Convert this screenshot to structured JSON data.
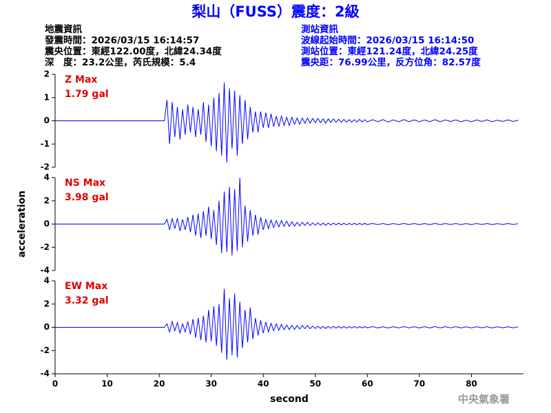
{
  "header": {
    "title": "梨山（FUSS）震度：2級",
    "event_info": [
      "地震資訊",
      "發震時間：2026/03/15 16:14:57",
      "震央位置：東經122.00度，北緯24.34度",
      "深　度：23.2公里，芮氏規模：5.4"
    ],
    "station_info": [
      "測站資訊",
      "波線起始時間：2026/03/15 16:14:50",
      "測站位置：東經121.24度，北緯24.25度",
      "震央距：76.99公里，反方位角：82.57度"
    ]
  },
  "chart_data": [
    {
      "type": "line",
      "annotations": [
        "Z Max",
        "1.79 gal"
      ],
      "xlim": [
        0,
        90
      ],
      "ylim": [
        -2,
        2
      ],
      "yticks": [
        -2,
        -1,
        0,
        1,
        2
      ],
      "x": [
        0,
        21,
        21.5,
        22,
        22.5,
        23,
        23.5,
        24,
        24.5,
        25,
        25.5,
        26,
        26.5,
        27,
        27.5,
        28,
        28.5,
        29,
        29.5,
        30,
        30.5,
        31,
        31.5,
        32,
        32.5,
        33,
        33.5,
        34,
        34.5,
        35,
        35.5,
        36,
        36.5,
        37,
        37.5,
        38,
        38.5,
        39,
        39.5,
        40,
        40.5,
        41,
        41.5,
        42,
        42.5,
        43,
        43.5,
        44,
        44.5,
        45,
        45.5,
        46,
        46.5,
        47,
        47.5,
        48,
        48.5,
        49,
        49.5,
        50,
        50.5,
        51,
        51.5,
        52,
        52.5,
        53,
        53.5,
        54,
        54.5,
        55,
        55.5,
        56,
        56.5,
        57,
        57.5,
        58,
        58.5,
        59,
        59.5,
        60,
        61,
        62,
        63,
        64,
        65,
        66,
        67,
        68,
        69,
        70,
        71,
        72,
        73,
        74,
        75,
        76,
        77,
        78,
        79,
        80,
        81,
        82,
        83,
        84,
        85,
        86,
        87,
        88,
        89
      ],
      "series": [
        {
          "color": "#0000ff",
          "values": [
            0,
            0,
            0.9,
            -1.0,
            0.8,
            -0.7,
            0.6,
            -0.8,
            0.5,
            -0.6,
            0.7,
            -0.5,
            0.6,
            -0.7,
            0.5,
            -0.6,
            0.8,
            -0.9,
            0.7,
            -1.1,
            1.0,
            -1.3,
            1.2,
            -1.5,
            1.65,
            -1.79,
            1.4,
            -1.2,
            1.3,
            -1.5,
            1.1,
            -1.0,
            0.9,
            -0.8,
            0.6,
            -0.5,
            0.4,
            -0.5,
            0.4,
            -0.3,
            0.35,
            -0.3,
            0.3,
            -0.25,
            0.2,
            -0.25,
            0.2,
            -0.2,
            0.15,
            -0.2,
            0.15,
            -0.15,
            0.12,
            -0.15,
            0.12,
            -0.1,
            0.12,
            -0.1,
            0.1,
            -0.08,
            0.1,
            -0.08,
            0.08,
            -0.1,
            0.08,
            -0.07,
            0.08,
            -0.06,
            0.07,
            -0.06,
            0.06,
            -0.06,
            0.05,
            -0.06,
            0.05,
            -0.05,
            0.06,
            -0.05,
            0.05,
            -0.05,
            0.05,
            -0.04,
            0.05,
            -0.05,
            0.04,
            -0.04,
            0.05,
            -0.04,
            0.04,
            -0.04,
            0.04,
            -0.04,
            0.05,
            -0.04,
            0.04,
            -0.03,
            0.04,
            -0.04,
            0.03,
            -0.04,
            0.04,
            -0.03,
            0.04,
            -0.04,
            0.03,
            -0.03,
            0.04,
            -0.03,
            0.03
          ]
        }
      ]
    },
    {
      "type": "line",
      "annotations": [
        "NS Max",
        "3.98 gal"
      ],
      "y_label": "acceleration",
      "xlim": [
        0,
        90
      ],
      "ylim": [
        -4,
        4
      ],
      "yticks": [
        -4,
        -2,
        0,
        2,
        4
      ],
      "x": [
        0,
        21,
        21.5,
        22,
        22.5,
        23,
        23.5,
        24,
        24.5,
        25,
        25.5,
        26,
        26.5,
        27,
        27.5,
        28,
        28.5,
        29,
        29.5,
        30,
        30.5,
        31,
        31.5,
        32,
        32.5,
        33,
        33.5,
        34,
        34.5,
        35,
        35.5,
        36,
        36.5,
        37,
        37.5,
        38,
        38.5,
        39,
        39.5,
        40,
        40.5,
        41,
        41.5,
        42,
        42.5,
        43,
        43.5,
        44,
        44.5,
        45,
        45.5,
        46,
        46.5,
        47,
        47.5,
        48,
        48.5,
        49,
        49.5,
        50,
        50.5,
        51,
        51.5,
        52,
        52.5,
        53,
        53.5,
        54,
        54.5,
        55,
        55.5,
        56,
        56.5,
        57,
        57.5,
        58,
        58.5,
        59,
        59.5,
        60,
        61,
        62,
        63,
        64,
        65,
        66,
        67,
        68,
        69,
        70,
        71,
        72,
        73,
        74,
        75,
        76,
        77,
        78,
        79,
        80,
        81,
        82,
        83,
        84,
        85,
        86,
        87,
        88,
        89
      ],
      "series": [
        {
          "color": "#0000ff",
          "values": [
            0,
            0,
            0.4,
            -0.5,
            0.5,
            -0.4,
            0.5,
            -0.6,
            0.4,
            -0.5,
            0.6,
            -0.7,
            0.8,
            -1.0,
            0.9,
            -1.2,
            1.1,
            -1.0,
            1.5,
            -1.3,
            1.2,
            -1.8,
            2.0,
            -2.5,
            2.8,
            -2.4,
            3.2,
            -2.7,
            3.0,
            -2.3,
            3.98,
            -2.0,
            1.6,
            -1.5,
            1.2,
            -1.0,
            0.8,
            -0.9,
            0.6,
            -0.5,
            0.4,
            -0.4,
            0.35,
            -0.3,
            0.3,
            -0.25,
            0.3,
            -0.2,
            0.25,
            -0.2,
            0.2,
            -0.18,
            0.15,
            -0.15,
            0.15,
            -0.12,
            0.15,
            -0.12,
            0.1,
            -0.1,
            0.1,
            -0.1,
            0.08,
            -0.1,
            0.08,
            -0.08,
            0.08,
            -0.07,
            0.08,
            -0.07,
            0.07,
            -0.07,
            0.06,
            -0.06,
            0.07,
            -0.06,
            0.06,
            -0.05,
            0.06,
            -0.05,
            0.06,
            -0.05,
            0.05,
            -0.06,
            0.05,
            -0.05,
            0.06,
            -0.05,
            0.05,
            -0.05,
            0.05,
            -0.05,
            0.06,
            -0.05,
            0.05,
            -0.04,
            0.05,
            -0.05,
            0.04,
            -0.05,
            0.05,
            -0.04,
            0.05,
            -0.05,
            0.04,
            -0.04,
            0.05,
            -0.04,
            0.04
          ]
        }
      ]
    },
    {
      "type": "line",
      "annotations": [
        "EW Max",
        "3.32 gal"
      ],
      "x_label": "second",
      "xlim": [
        0,
        90
      ],
      "xticks": [
        0,
        10,
        20,
        30,
        40,
        50,
        60,
        70,
        80
      ],
      "ylim": [
        -4,
        4
      ],
      "yticks": [
        -4,
        -2,
        0,
        2,
        4
      ],
      "x": [
        0,
        21,
        21.5,
        22,
        22.5,
        23,
        23.5,
        24,
        24.5,
        25,
        25.5,
        26,
        26.5,
        27,
        27.5,
        28,
        28.5,
        29,
        29.5,
        30,
        30.5,
        31,
        31.5,
        32,
        32.5,
        33,
        33.5,
        34,
        34.5,
        35,
        35.5,
        36,
        36.5,
        37,
        37.5,
        38,
        38.5,
        39,
        39.5,
        40,
        40.5,
        41,
        41.5,
        42,
        42.5,
        43,
        43.5,
        44,
        44.5,
        45,
        45.5,
        46,
        46.5,
        47,
        47.5,
        48,
        48.5,
        49,
        49.5,
        50,
        50.5,
        51,
        51.5,
        52,
        52.5,
        53,
        53.5,
        54,
        54.5,
        55,
        55.5,
        56,
        56.5,
        57,
        57.5,
        58,
        58.5,
        59,
        59.5,
        60,
        61,
        62,
        63,
        64,
        65,
        66,
        67,
        68,
        69,
        70,
        71,
        72,
        73,
        74,
        75,
        76,
        77,
        78,
        79,
        80,
        81,
        82,
        83,
        84,
        85,
        86,
        87,
        88,
        89
      ],
      "series": [
        {
          "color": "#0000ff",
          "values": [
            0,
            0,
            0.3,
            -0.4,
            0.5,
            -0.3,
            0.4,
            -0.5,
            0.3,
            -0.4,
            0.5,
            -0.6,
            0.7,
            -0.9,
            0.8,
            -1.1,
            1.0,
            -1.3,
            1.5,
            -1.2,
            1.8,
            -1.6,
            2.0,
            -2.2,
            3.32,
            -2.8,
            2.5,
            -2.4,
            2.9,
            -2.6,
            2.2,
            -1.8,
            1.5,
            -1.3,
            1.7,
            -1.0,
            0.8,
            -0.7,
            0.6,
            -0.5,
            0.45,
            -0.4,
            0.35,
            -0.3,
            0.3,
            -0.25,
            0.25,
            -0.2,
            0.2,
            -0.2,
            0.18,
            -0.18,
            0.15,
            -0.15,
            0.15,
            -0.12,
            0.15,
            -0.12,
            0.1,
            -0.1,
            0.1,
            -0.1,
            0.08,
            -0.1,
            0.08,
            -0.08,
            0.08,
            -0.07,
            0.08,
            -0.07,
            0.07,
            -0.07,
            0.06,
            -0.06,
            0.07,
            -0.06,
            0.06,
            -0.05,
            0.06,
            -0.05,
            0.06,
            -0.05,
            0.05,
            -0.06,
            0.05,
            -0.05,
            0.06,
            -0.05,
            0.05,
            -0.05,
            0.05,
            -0.05,
            0.06,
            -0.05,
            0.05,
            -0.04,
            0.05,
            -0.05,
            0.04,
            -0.05,
            0.05,
            -0.04,
            0.05,
            -0.05,
            0.04,
            -0.04,
            0.05,
            -0.04,
            0.04
          ]
        }
      ]
    }
  ],
  "footer": "中央氣象署"
}
